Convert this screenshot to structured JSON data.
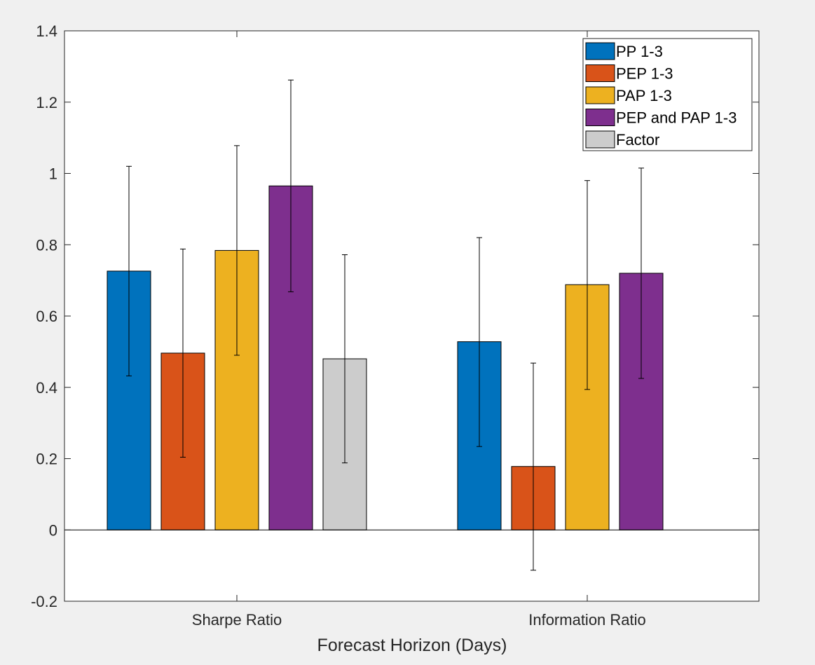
{
  "chart_data": {
    "type": "bar",
    "title": "",
    "xlabel": "Forecast Horizon (Days)",
    "ylabel": "",
    "categories": [
      "Sharpe Ratio",
      "Information Ratio"
    ],
    "ylim": [
      -0.2,
      1.4
    ],
    "yticks": [
      -0.2,
      0,
      0.2,
      0.4,
      0.6,
      0.8,
      1,
      1.2,
      1.4
    ],
    "ytick_labels": [
      "-0.2",
      "0",
      "0.2",
      "0.4",
      "0.6",
      "0.8",
      "1",
      "1.2",
      "1.4"
    ],
    "grid": false,
    "legend_position": "top-right",
    "series": [
      {
        "name": "PP 1-3",
        "color": "#0072bd",
        "values": [
          0.726,
          0.528
        ],
        "err_low": [
          0.432,
          0.234
        ],
        "err_high": [
          1.02,
          0.82
        ]
      },
      {
        "name": "PEP 1-3",
        "color": "#d95319",
        "values": [
          0.496,
          0.178
        ],
        "err_low": [
          0.204,
          -0.113
        ],
        "err_high": [
          0.788,
          0.468
        ]
      },
      {
        "name": "PAP 1-3",
        "color": "#edb120",
        "values": [
          0.784,
          0.688
        ],
        "err_low": [
          0.49,
          0.394
        ],
        "err_high": [
          1.078,
          0.98
        ]
      },
      {
        "name": "PEP and PAP 1-3",
        "color": "#7e2f8e",
        "values": [
          0.965,
          0.72
        ],
        "err_low": [
          0.668,
          0.425
        ],
        "err_high": [
          1.262,
          1.015
        ]
      },
      {
        "name": "Factor",
        "color": "#cccccc",
        "values": [
          0.48,
          null
        ],
        "err_low": [
          0.188,
          null
        ],
        "err_high": [
          0.772,
          null
        ]
      }
    ]
  }
}
